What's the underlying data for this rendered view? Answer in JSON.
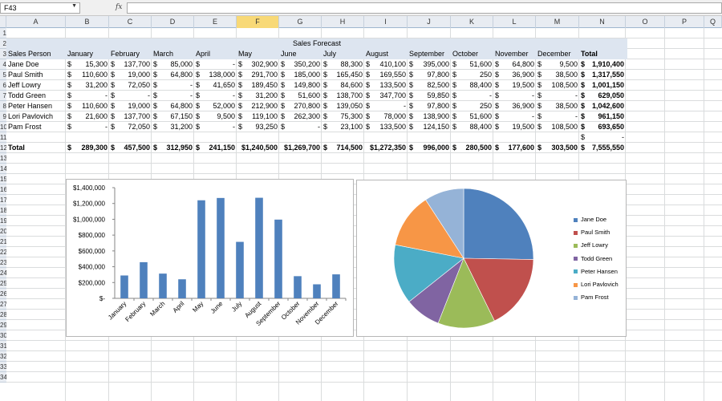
{
  "formula_bar": {
    "name_box": "F43",
    "fx": "fx",
    "formula": ""
  },
  "columns": [
    "A",
    "B",
    "C",
    "D",
    "E",
    "F",
    "G",
    "H",
    "I",
    "J",
    "K",
    "L",
    "M",
    "N",
    "O",
    "P",
    "Q"
  ],
  "selected_column": "F",
  "rows": [
    "1",
    "2",
    "3",
    "4",
    "5",
    "6",
    "7",
    "8",
    "9",
    "10",
    "11",
    "12",
    "13",
    "14",
    "15",
    "16",
    "17",
    "18",
    "19",
    "20",
    "21",
    "22",
    "23",
    "24",
    "25",
    "26",
    "27",
    "28",
    "29",
    "30",
    "31",
    "32",
    "33",
    "34"
  ],
  "sheet": {
    "title": "Sales Forecast",
    "header_label": "Sales Person",
    "months": [
      "January",
      "February",
      "March",
      "April",
      "May",
      "June",
      "July",
      "August",
      "September",
      "October",
      "November",
      "December"
    ],
    "total_label": "Total",
    "people": [
      {
        "name": "Jane Doe",
        "values": [
          "15,300",
          "137,700",
          "85,000",
          "-",
          "302,900",
          "350,200",
          "88,300",
          "410,100",
          "395,000",
          "51,600",
          "64,800",
          "9,500"
        ],
        "total": "1,910,400"
      },
      {
        "name": "Paul Smith",
        "values": [
          "110,600",
          "19,000",
          "64,800",
          "138,000",
          "291,700",
          "185,000",
          "165,450",
          "169,550",
          "97,800",
          "250",
          "36,900",
          "38,500"
        ],
        "total": "1,317,550"
      },
      {
        "name": "Jeff Lowry",
        "values": [
          "31,200",
          "72,050",
          "-",
          "41,650",
          "189,450",
          "149,800",
          "84,600",
          "133,500",
          "82,500",
          "88,400",
          "19,500",
          "108,500"
        ],
        "total": "1,001,150"
      },
      {
        "name": "Todd Green",
        "values": [
          "-",
          "-",
          "-",
          "-",
          "31,200",
          "51,600",
          "138,700",
          "347,700",
          "59,850",
          "-",
          "-",
          "-"
        ],
        "total": "629,050"
      },
      {
        "name": "Peter Hansen",
        "values": [
          "110,600",
          "19,000",
          "64,800",
          "52,000",
          "212,900",
          "270,800",
          "139,050",
          "-",
          "97,800",
          "250",
          "36,900",
          "38,500"
        ],
        "total": "1,042,600"
      },
      {
        "name": "Lori Pavlovich",
        "values": [
          "21,600",
          "137,700",
          "67,150",
          "9,500",
          "119,100",
          "262,300",
          "75,300",
          "78,000",
          "138,900",
          "51,600",
          "-",
          "-"
        ],
        "total": "961,150"
      },
      {
        "name": "Pam Frost",
        "values": [
          "-",
          "72,050",
          "31,200",
          "-",
          "93,250",
          "-",
          "23,100",
          "133,500",
          "124,150",
          "88,400",
          "19,500",
          "108,500"
        ],
        "total": "693,650"
      }
    ],
    "blank_total": "-",
    "totals_label": "Total",
    "totals": [
      "289,300",
      "457,500",
      "312,950",
      "241,150",
      "$1,240,500",
      "$1,269,700",
      "714,500",
      "$1,272,350",
      "996,000",
      "280,500",
      "177,600",
      "303,500"
    ],
    "grand_total": "7,555,550",
    "currency": "$"
  },
  "chart_data": [
    {
      "type": "bar",
      "categories": [
        "January",
        "February",
        "March",
        "April",
        "May",
        "June",
        "July",
        "August",
        "September",
        "October",
        "November",
        "December"
      ],
      "values": [
        289300,
        457500,
        312950,
        241150,
        1240500,
        1269700,
        714500,
        1272350,
        996000,
        280500,
        177600,
        303500
      ],
      "ylim": [
        0,
        1400000
      ],
      "ytick_labels": [
        "$-",
        "$200,000",
        "$400,000",
        "$600,000",
        "$800,000",
        "$1,000,000",
        "$1,200,000",
        "$1,400,000"
      ],
      "ytick_values": [
        0,
        200000,
        400000,
        600000,
        800000,
        1000000,
        1200000,
        1400000
      ],
      "color": "#4f81bd",
      "grid": false
    },
    {
      "type": "pie",
      "categories": [
        "Jane Doe",
        "Paul Smith",
        "Jeff Lowry",
        "Todd Green",
        "Peter Hansen",
        "Lori Pavlovich",
        "Pam Frost"
      ],
      "values": [
        1910400,
        1317550,
        1001150,
        629050,
        1042600,
        961150,
        693650
      ],
      "colors": [
        "#4f81bd",
        "#c0504d",
        "#9bbb59",
        "#8064a2",
        "#4bacc6",
        "#f79646",
        "#95b3d7"
      ],
      "legend": "right"
    }
  ]
}
